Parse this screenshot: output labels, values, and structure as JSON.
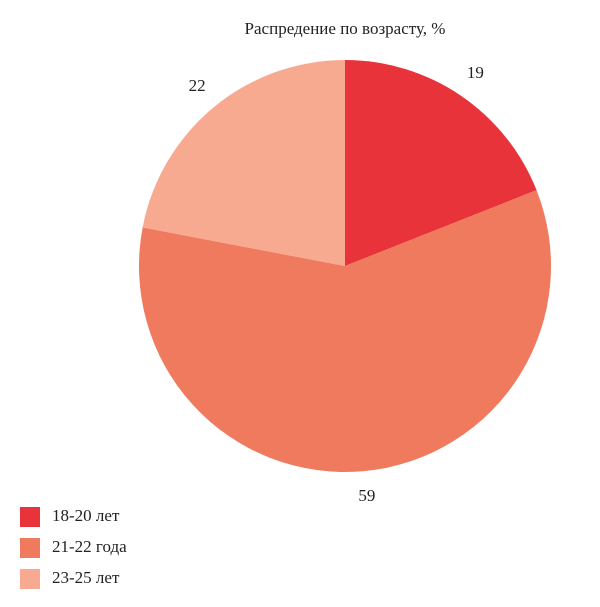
{
  "chart_data": {
    "type": "pie",
    "title": "Распредение по возрасту, %",
    "categories": [
      "18-20 лет",
      "21-22 года",
      "23-25 лет"
    ],
    "values": [
      19,
      59,
      22
    ],
    "colors": [
      "#e8333a",
      "#f07a5e",
      "#f7aa90"
    ],
    "legend": "bottom-left"
  }
}
